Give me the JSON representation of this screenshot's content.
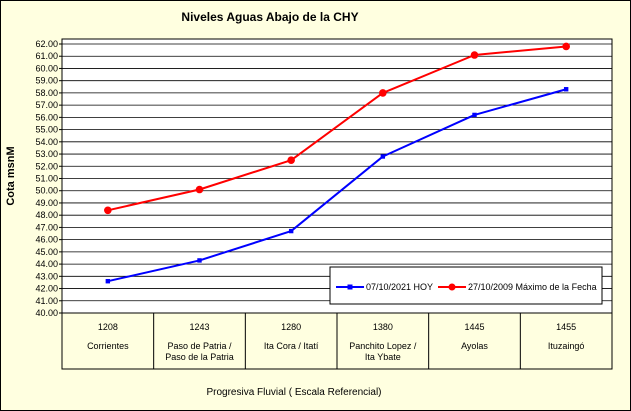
{
  "chart_data": {
    "type": "line",
    "title": "Niveles Aguas Abajo de la CHY",
    "ylabel": "Cota msnM",
    "xlabel": "Progresiva Fluvial ( Escala Referencial)",
    "ylim": [
      40.0,
      62.0
    ],
    "y_step": 1.0,
    "grid": true,
    "legend_position": "bottom-right",
    "categories": [
      {
        "code": "1208",
        "name": [
          "Corrientes"
        ]
      },
      {
        "code": "1243",
        "name": [
          "Paso de Patria /",
          "Paso de la Patria"
        ]
      },
      {
        "code": "1280",
        "name": [
          "Ita Cora / Itatí"
        ]
      },
      {
        "code": "1380",
        "name": [
          "Panchito Lopez /",
          "Ita Ybate"
        ]
      },
      {
        "code": "1445",
        "name": [
          "Ayolas"
        ]
      },
      {
        "code": "1455",
        "name": [
          "Ituzaingó"
        ]
      }
    ],
    "series": [
      {
        "name": "07/10/2021 HOY",
        "color": "#0000ff",
        "marker": "square",
        "values": [
          42.6,
          44.3,
          46.7,
          52.8,
          56.2,
          58.3
        ]
      },
      {
        "name": "27/10/2009 Máximo de la Fecha",
        "color": "#ff0000",
        "marker": "circle",
        "values": [
          48.4,
          50.1,
          52.5,
          58.0,
          61.1,
          61.8
        ]
      }
    ]
  }
}
